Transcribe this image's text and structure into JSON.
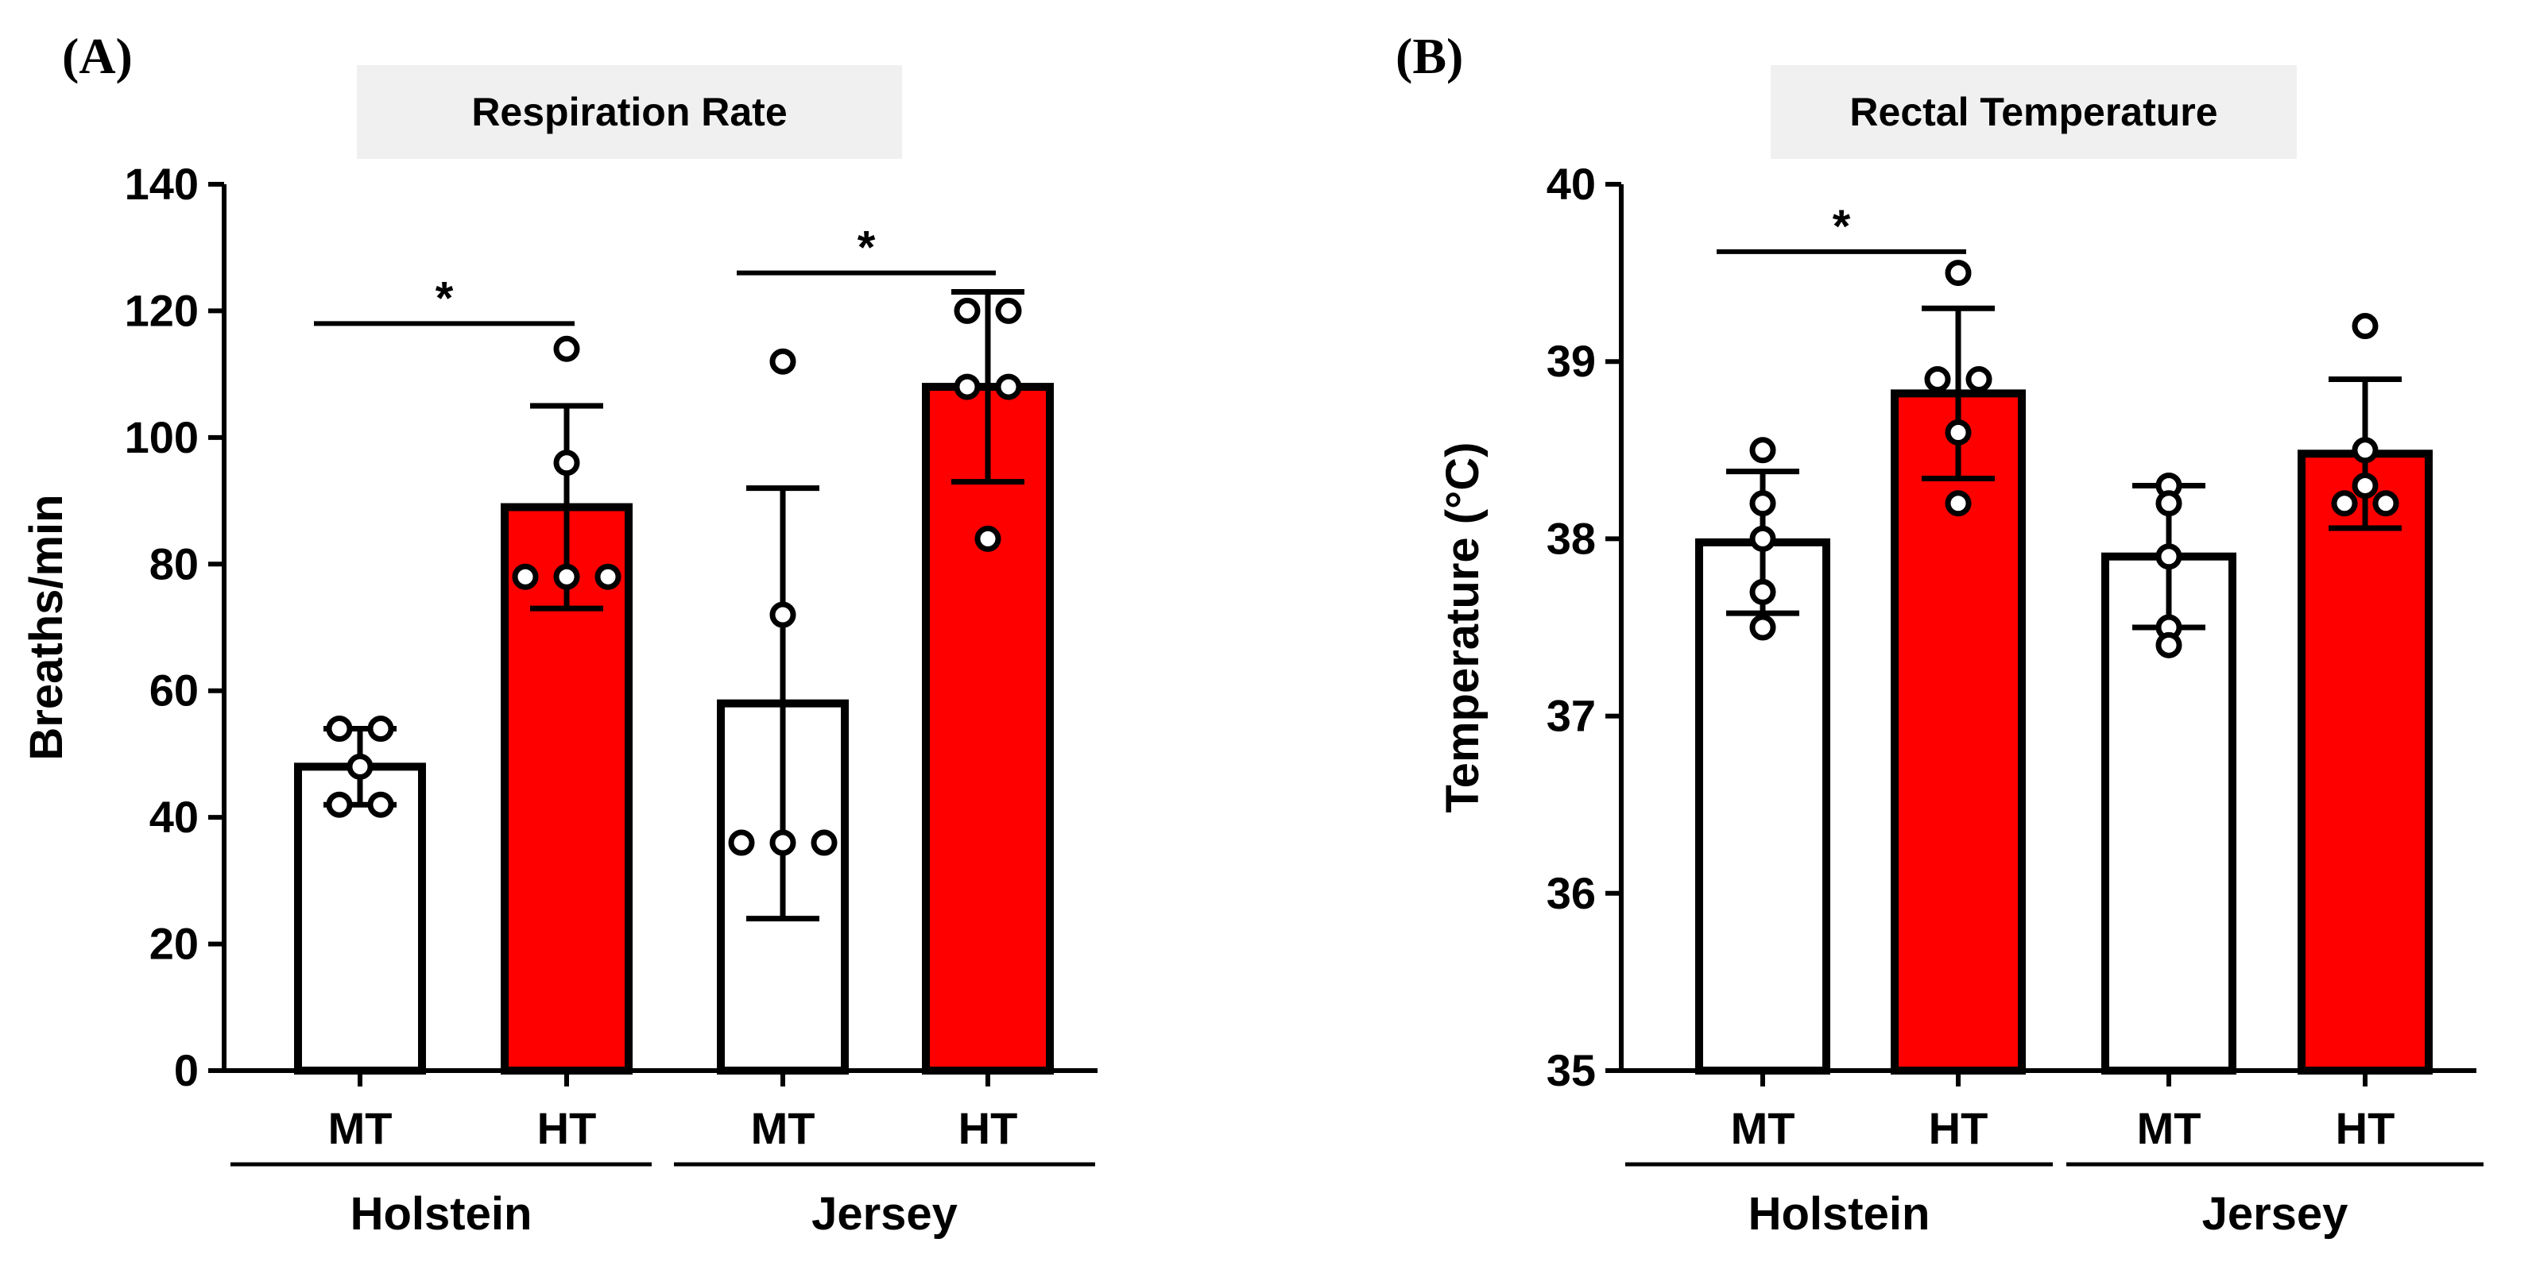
{
  "chart_data": [
    {
      "type": "bar",
      "panel": "(A)",
      "title": "Respiration Rate",
      "ylabel": "Breaths/min",
      "xlabel": "",
      "ylim": [
        0,
        140
      ],
      "yticks": [
        0,
        20,
        40,
        60,
        80,
        100,
        120,
        140
      ],
      "categories": [
        "MT",
        "HT",
        "MT",
        "HT"
      ],
      "groups": [
        {
          "name": "Holstein",
          "categories": [
            0,
            1
          ]
        },
        {
          "name": "Jersey",
          "categories": [
            2,
            3
          ]
        }
      ],
      "values": [
        48,
        89,
        58,
        108
      ],
      "error_low": [
        42,
        73,
        24,
        93
      ],
      "error_high": [
        54,
        105,
        92,
        123
      ],
      "fill_colors": [
        "#ffffff",
        "#ff0000",
        "#ffffff",
        "#ff0000"
      ],
      "points": [
        [
          54,
          54,
          48,
          42,
          42
        ],
        [
          114,
          96,
          78,
          78,
          78
        ],
        [
          112,
          72,
          36,
          36,
          36
        ],
        [
          120,
          120,
          108,
          108,
          84
        ]
      ],
      "significance": [
        {
          "from": 0,
          "to": 1,
          "label": "*",
          "y": 118
        },
        {
          "from": 2,
          "to": 3,
          "label": "*",
          "y": 126
        }
      ]
    },
    {
      "type": "bar",
      "panel": "(B)",
      "title": "Rectal Temperature",
      "ylabel": "Temperature (°C)",
      "xlabel": "",
      "ylim": [
        35,
        40
      ],
      "yticks": [
        35,
        36,
        37,
        38,
        39,
        40
      ],
      "categories": [
        "MT",
        "HT",
        "MT",
        "HT"
      ],
      "groups": [
        {
          "name": "Holstein",
          "categories": [
            0,
            1
          ]
        },
        {
          "name": "Jersey",
          "categories": [
            2,
            3
          ]
        }
      ],
      "values": [
        37.98,
        38.82,
        37.9,
        38.48
      ],
      "error_low": [
        37.58,
        38.34,
        37.5,
        38.06
      ],
      "error_high": [
        38.38,
        39.3,
        38.3,
        38.9
      ],
      "fill_colors": [
        "#ffffff",
        "#ff0000",
        "#ffffff",
        "#ff0000"
      ],
      "points": [
        [
          38.5,
          38.2,
          38.0,
          37.7,
          37.5
        ],
        [
          39.5,
          38.9,
          38.9,
          38.6,
          38.2
        ],
        [
          38.3,
          38.2,
          37.9,
          37.5,
          37.4
        ],
        [
          39.2,
          38.5,
          38.3,
          38.2,
          38.2
        ]
      ],
      "significance": [
        {
          "from": 0,
          "to": 1,
          "label": "*",
          "y": 39.62
        }
      ]
    }
  ]
}
